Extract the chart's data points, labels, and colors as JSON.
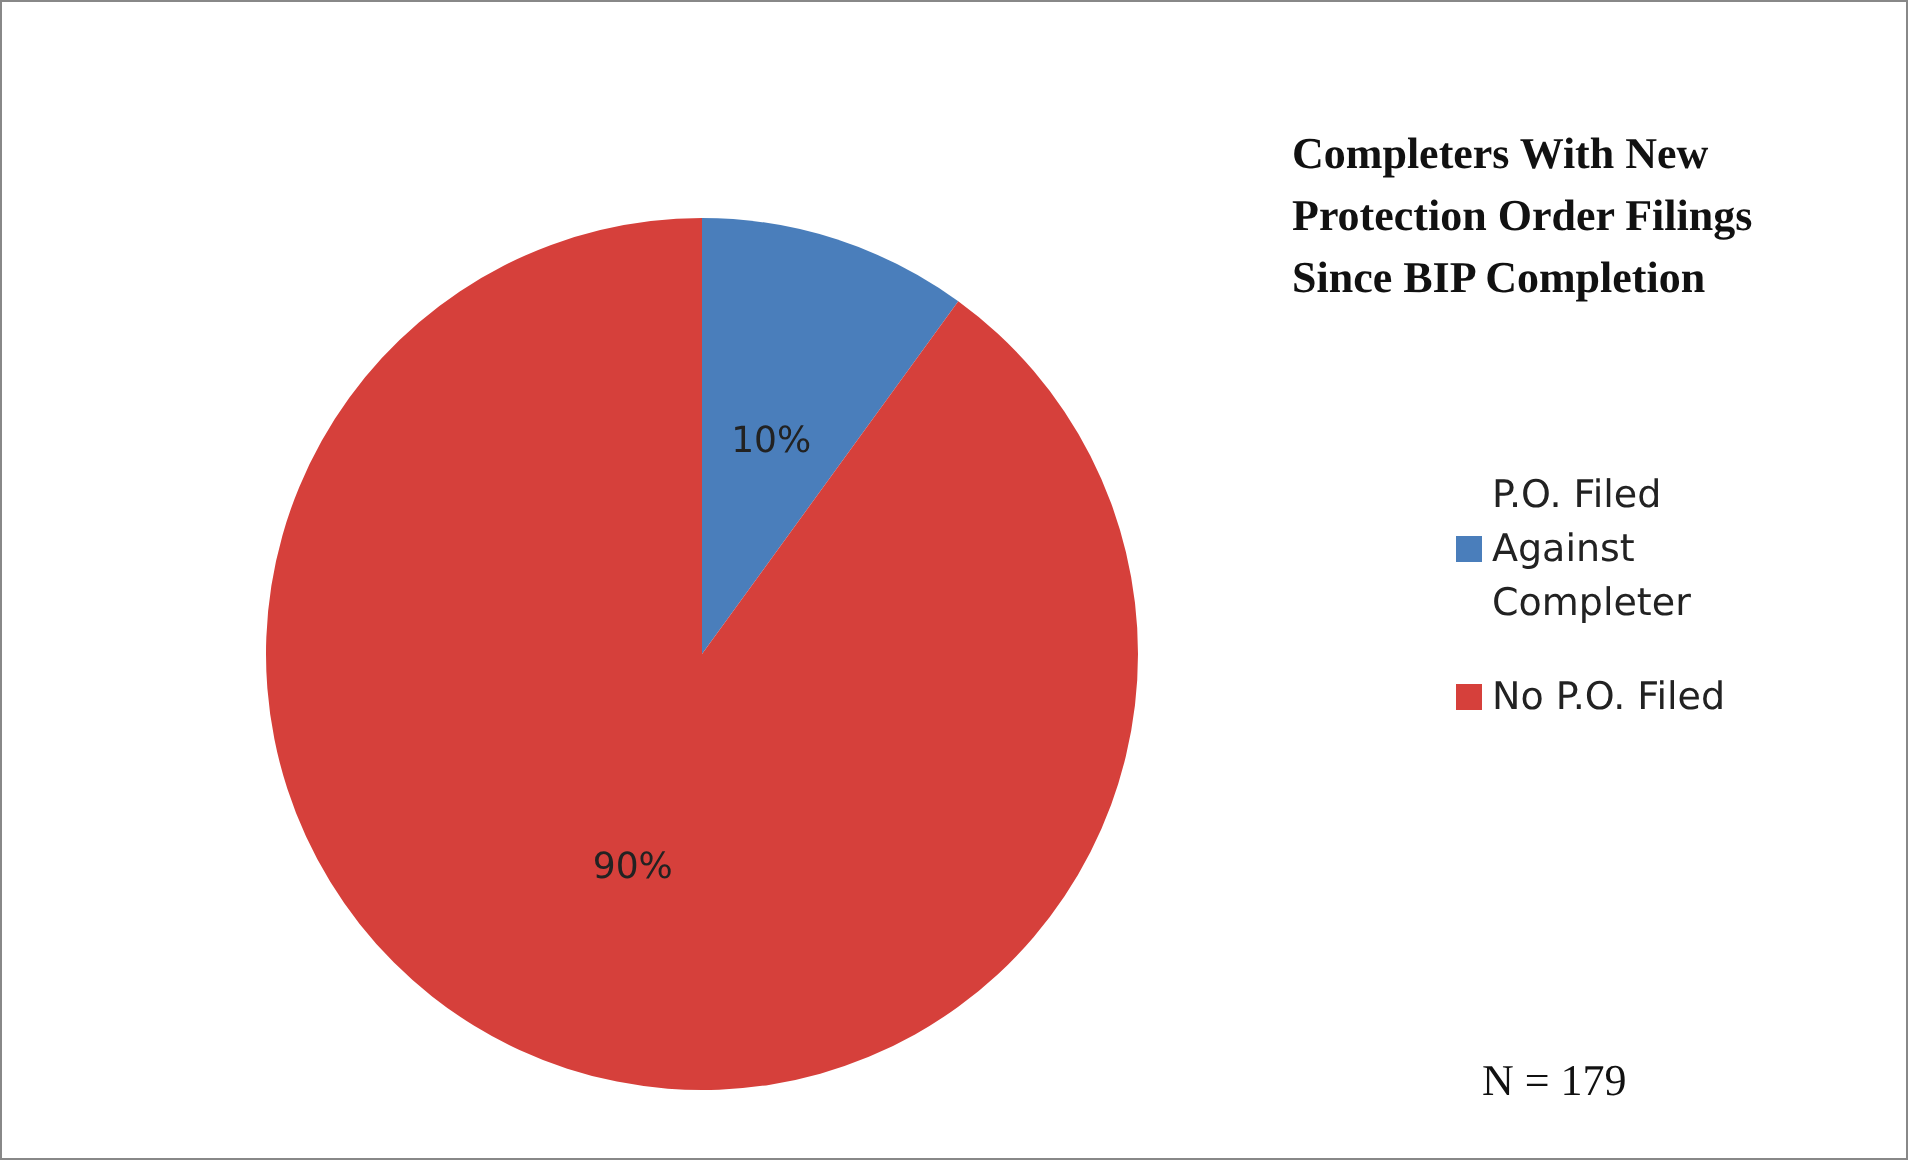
{
  "chart_data": {
    "type": "pie",
    "title": "Completers With New Protection Order Filings Since BIP Completion",
    "categories": [
      "P.O. Filed Against Completer",
      "No P.O. Filed"
    ],
    "values": [
      10,
      90
    ],
    "colors": [
      "#4a7ebb",
      "#d6403b"
    ],
    "value_labels": [
      "10%",
      "90%"
    ],
    "legend": "right",
    "annotations": [
      "N = 179"
    ]
  }
}
